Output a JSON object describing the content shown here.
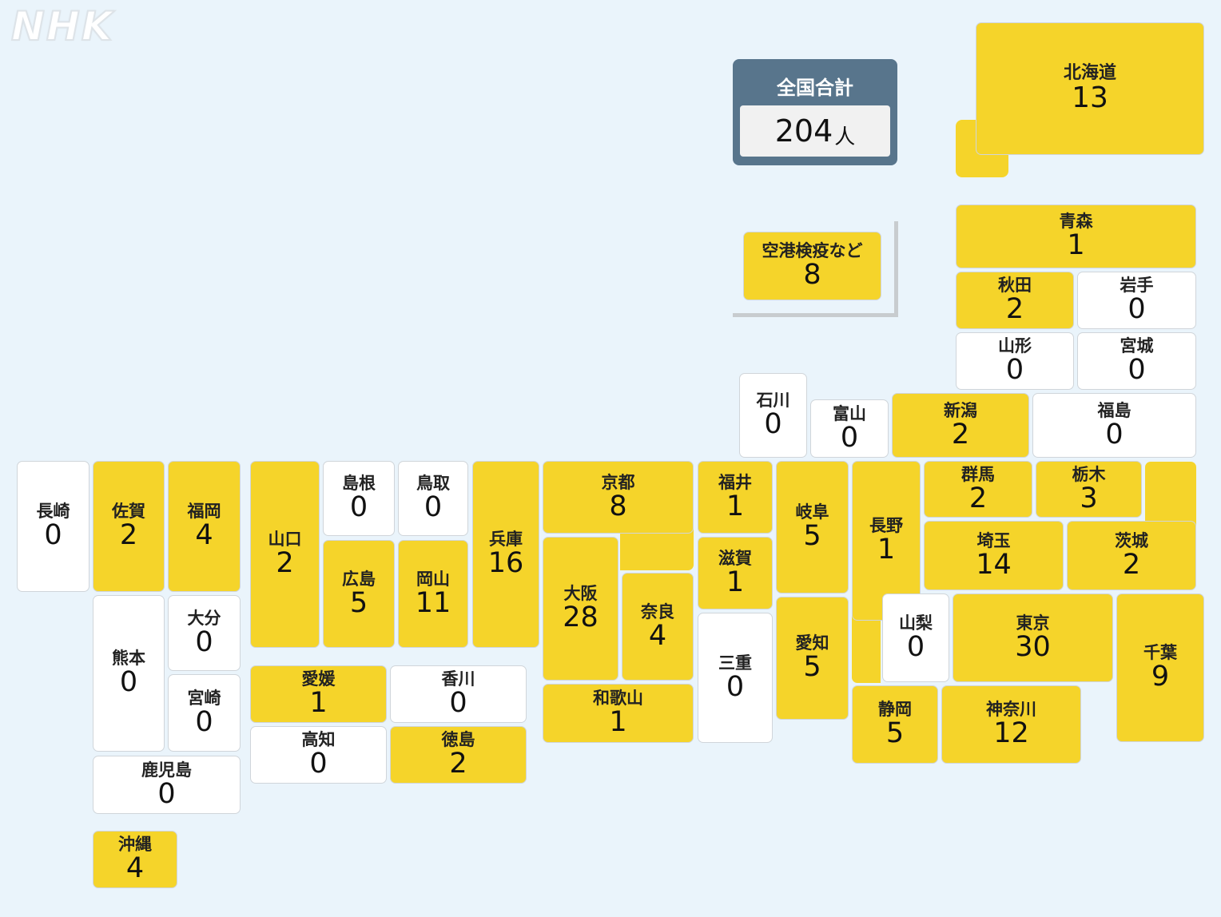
{
  "logo": "NHK",
  "total": {
    "label": "全国合計",
    "value": "204",
    "unit": "人"
  },
  "prefectures": [
    {
      "name": "北海道",
      "count": "13"
    },
    {
      "name": "青森",
      "count": "1"
    },
    {
      "name": "秋田",
      "count": "2"
    },
    {
      "name": "岩手",
      "count": "0"
    },
    {
      "name": "山形",
      "count": "0"
    },
    {
      "name": "宮城",
      "count": "0"
    },
    {
      "name": "空港検疫など",
      "count": "8"
    },
    {
      "name": "石川",
      "count": "0"
    },
    {
      "name": "富山",
      "count": "0"
    },
    {
      "name": "新潟",
      "count": "2"
    },
    {
      "name": "福島",
      "count": "0"
    },
    {
      "name": "長崎",
      "count": "0"
    },
    {
      "name": "佐賀",
      "count": "2"
    },
    {
      "name": "福岡",
      "count": "4"
    },
    {
      "name": "山口",
      "count": "2"
    },
    {
      "name": "島根",
      "count": "0"
    },
    {
      "name": "鳥取",
      "count": "0"
    },
    {
      "name": "兵庫",
      "count": "16"
    },
    {
      "name": "京都",
      "count": "8"
    },
    {
      "name": "福井",
      "count": "1"
    },
    {
      "name": "岐阜",
      "count": "5"
    },
    {
      "name": "長野",
      "count": "1"
    },
    {
      "name": "群馬",
      "count": "2"
    },
    {
      "name": "栃木",
      "count": "3"
    },
    {
      "name": "茨城",
      "count": "2"
    },
    {
      "name": "広島",
      "count": "5"
    },
    {
      "name": "岡山",
      "count": "11"
    },
    {
      "name": "大阪",
      "count": "28"
    },
    {
      "name": "奈良",
      "count": "4"
    },
    {
      "name": "滋賀",
      "count": "1"
    },
    {
      "name": "埼玉",
      "count": "14"
    },
    {
      "name": "熊本",
      "count": "0"
    },
    {
      "name": "大分",
      "count": "0"
    },
    {
      "name": "宮崎",
      "count": "0"
    },
    {
      "name": "愛知",
      "count": "5"
    },
    {
      "name": "三重",
      "count": "0"
    },
    {
      "name": "山梨",
      "count": "0"
    },
    {
      "name": "東京",
      "count": "30"
    },
    {
      "name": "千葉",
      "count": "9"
    },
    {
      "name": "愛媛",
      "count": "1"
    },
    {
      "name": "香川",
      "count": "0"
    },
    {
      "name": "高知",
      "count": "0"
    },
    {
      "name": "徳島",
      "count": "2"
    },
    {
      "name": "和歌山",
      "count": "1"
    },
    {
      "name": "静岡",
      "count": "5"
    },
    {
      "name": "神奈川",
      "count": "12"
    },
    {
      "name": "鹿児島",
      "count": "0"
    },
    {
      "name": "沖縄",
      "count": "4"
    }
  ]
}
